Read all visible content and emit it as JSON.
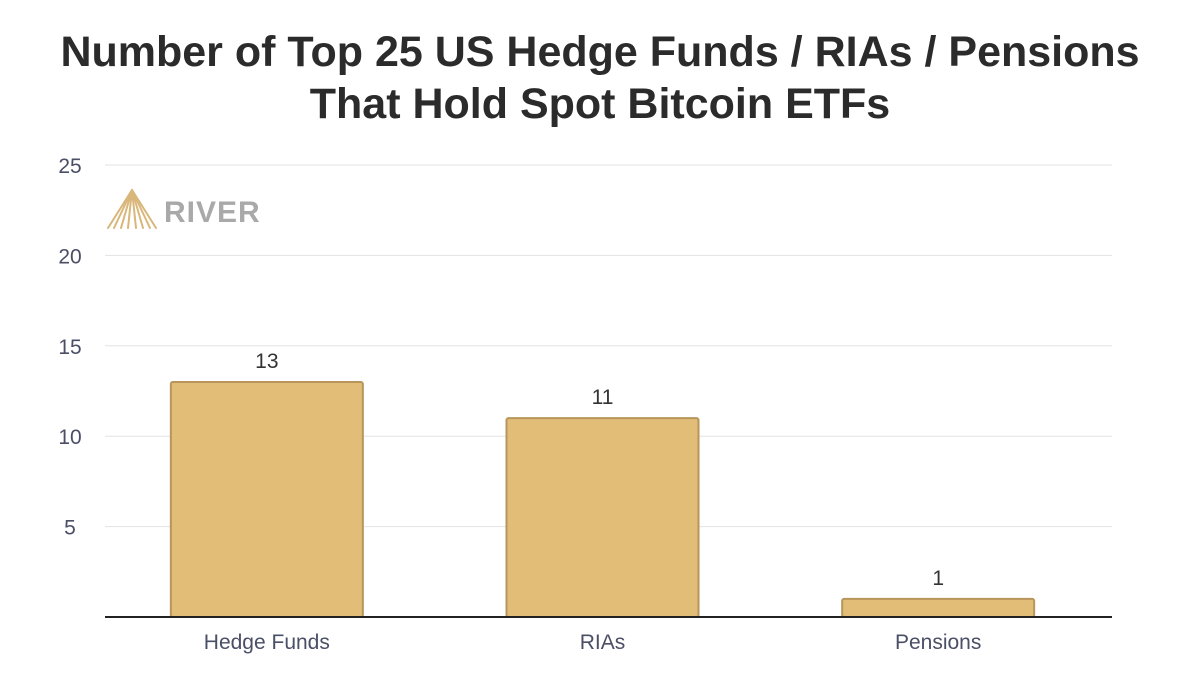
{
  "brand": {
    "name": "RIVER",
    "accent_color": "#d4aa66"
  },
  "chart_data": {
    "type": "bar",
    "title_lines": [
      "Number of Top 25 US Hedge Funds / RIAs / Pensions",
      "That Hold Spot Bitcoin ETFs"
    ],
    "categories": [
      "Hedge Funds",
      "RIAs",
      "Pensions"
    ],
    "values": [
      13,
      11,
      1
    ],
    "data_labels": [
      "13",
      "11",
      "1"
    ],
    "ylim": [
      0,
      25
    ],
    "yticks": [
      5,
      10,
      15,
      20,
      25
    ],
    "xlabel": "",
    "ylabel": "",
    "grid": true,
    "bar_color": "#e2bd78",
    "bar_edge_color": "#b8955a",
    "grid_color": "#e3e3e3",
    "axis_color": "#222222"
  }
}
